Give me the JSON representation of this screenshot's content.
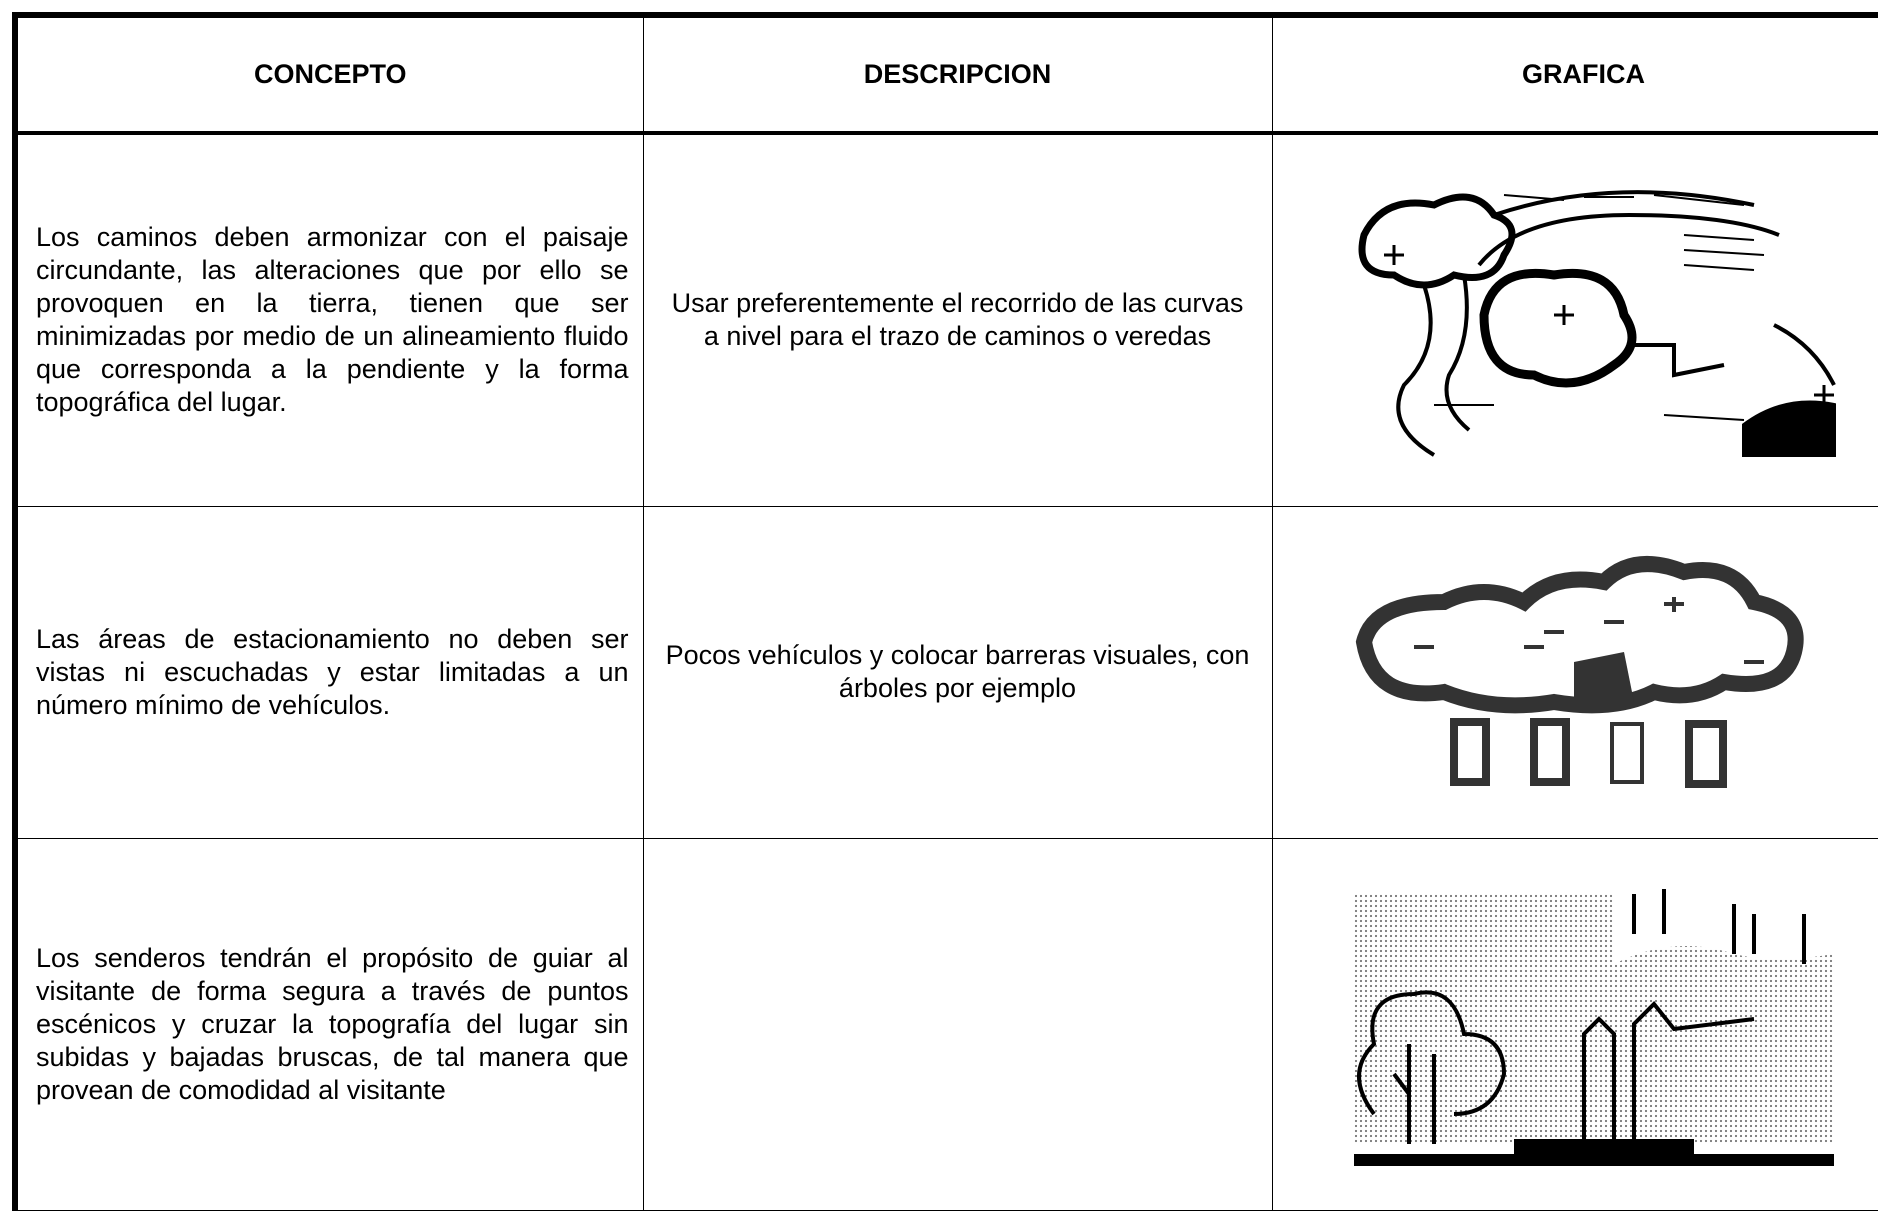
{
  "table": {
    "columns": [
      "CONCEPTO",
      "DESCRIPCION",
      "GRAFICA"
    ],
    "rows": [
      {
        "concept": "Los caminos deben armonizar con el paisaje circundante, las alteraciones que por ello se provoquen en la tierra, tienen que ser minimizadas por medio de un alineamiento fluido que corresponda a la pendiente y la forma topográfica del lugar.",
        "description": "Usar preferentemente el recorrido de las curvas a nivel para el trazo de caminos o veredas"
      },
      {
        "concept": "Las áreas de estacionamiento no deben ser vistas ni escuchadas y estar limitadas a un número mínimo de vehículos.",
        "description": "Pocos vehículos y colocar barreras visuales, con árboles por ejemplo"
      },
      {
        "concept": "Los senderos tendrán el propósito de guiar al visitante de forma segura a través de puntos escénicos y cruzar la topografía del lugar sin subidas y bajadas bruscas, de tal manera que provean de comodidad al visitante"
      }
    ]
  }
}
